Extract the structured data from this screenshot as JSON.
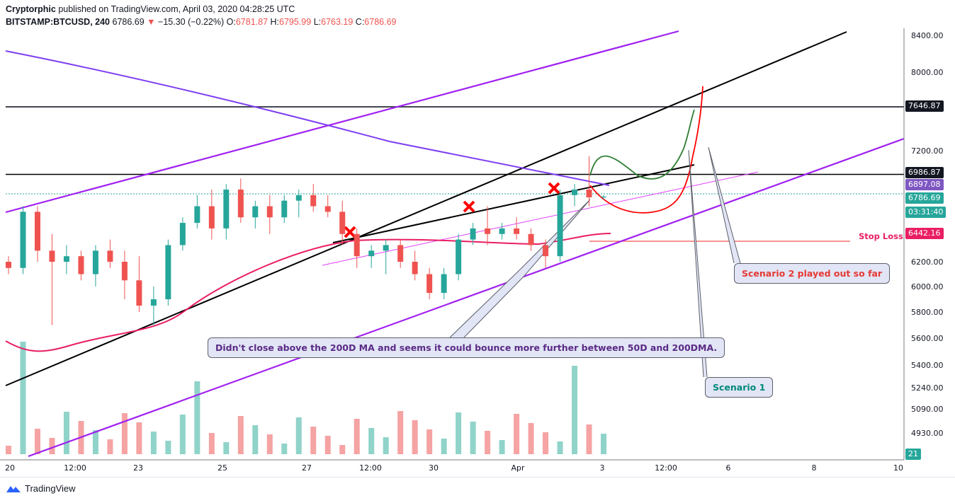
{
  "header": {
    "author": "Cryptorphic",
    "published": " published on TradingView.com, April 03, 2020 04:28:25 UTC",
    "symbol": "BITSTAMP:BTCUSD, 240",
    "last": "6786.69",
    "change_arrow": "▼",
    "change": "−15.30 (−0.22%)",
    "o_label": "O:",
    "o": "6781.87",
    "h_label": "H:",
    "h": "6795.99",
    "l_label": "L:",
    "l": "6763.19",
    "c_label": "C:",
    "c": "6786.69"
  },
  "footer": {
    "brand": "TradingView",
    "logo_icon": "tradingview-logo-icon"
  },
  "price_axis": {
    "ticks": [
      "8400.00",
      "8000.00",
      "7200.00",
      "6200.00",
      "6000.00",
      "5800.00",
      "5600.00",
      "5400.00",
      "5240.00",
      "5090.00",
      "4930.00"
    ],
    "tags": {
      "resistance": "7646.87",
      "level": "6986.87",
      "ma200": "6897.08",
      "last": "6786.69",
      "countdown": "03:31:40",
      "stoploss": "6442.16",
      "volume": "21"
    }
  },
  "time_axis": {
    "ticks": [
      "20",
      "12:00",
      "23",
      "25",
      "27",
      "12:00",
      "30",
      "Apr",
      "3",
      "12:00",
      "6",
      "8",
      "10"
    ]
  },
  "annotations": {
    "bounce": "Didn't close above the 200D  MA and seems it could bounce more further between 50D and 200DMA.",
    "scenario1": "Scenario 1",
    "scenario2": "Scenario 2 played out so far",
    "stoploss": "Stop Loss"
  },
  "colors": {
    "up": "#26a69a",
    "down": "#ef5350",
    "ma200": "#7e3ff2",
    "ma50": "#e91e63",
    "channel": "#a020f0"
  },
  "chart_data": {
    "type": "candlestick",
    "symbol": "BITSTAMP:BTCUSD",
    "interval": "240",
    "last": {
      "open": 6781.87,
      "high": 6795.99,
      "low": 6763.19,
      "close": 6786.69
    },
    "levels": {
      "resistance": 7646.87,
      "horizontal": 6986.87,
      "ma200": 6897.08,
      "stop_loss": 6442.16
    },
    "series": [
      {
        "name": "candles",
        "values": [
          [
            6200,
            6250,
            6100,
            6150
          ],
          [
            6150,
            6700,
            6100,
            6650
          ],
          [
            6650,
            6700,
            6200,
            6300
          ],
          [
            6300,
            6450,
            5700,
            6200
          ],
          [
            6200,
            6350,
            6100,
            6250
          ],
          [
            6250,
            6300,
            6050,
            6100
          ],
          [
            6100,
            6350,
            6000,
            6300
          ],
          [
            6300,
            6400,
            6150,
            6200
          ],
          [
            6200,
            6300,
            5900,
            6050
          ],
          [
            6050,
            6250,
            5800,
            5850
          ],
          [
            5850,
            6000,
            5700,
            5900
          ],
          [
            5900,
            6400,
            5850,
            6350
          ],
          [
            6350,
            6600,
            6300,
            6550
          ],
          [
            6550,
            6800,
            6500,
            6700
          ],
          [
            6700,
            6850,
            6400,
            6500
          ],
          [
            6500,
            6900,
            6400,
            6850
          ],
          [
            6850,
            6950,
            6550,
            6600
          ],
          [
            6600,
            6750,
            6500,
            6700
          ],
          [
            6700,
            6800,
            6450,
            6600
          ],
          [
            6600,
            6800,
            6550,
            6750
          ],
          [
            6750,
            6850,
            6600,
            6800
          ],
          [
            6800,
            6900,
            6650,
            6700
          ],
          [
            6700,
            6800,
            6600,
            6650
          ],
          [
            6650,
            6750,
            6350,
            6450
          ],
          [
            6450,
            6500,
            6150,
            6250
          ],
          [
            6250,
            6350,
            6150,
            6300
          ],
          [
            6300,
            6400,
            6100,
            6350
          ],
          [
            6350,
            6400,
            6150,
            6200
          ],
          [
            6200,
            6300,
            6050,
            6100
          ],
          [
            6100,
            6150,
            5900,
            5950
          ],
          [
            5950,
            6150,
            5900,
            6100
          ],
          [
            6100,
            6450,
            6050,
            6400
          ],
          [
            6400,
            6550,
            6350,
            6500
          ],
          [
            6500,
            6700,
            6350,
            6450
          ],
          [
            6450,
            6550,
            6400,
            6500
          ],
          [
            6500,
            6600,
            6400,
            6450
          ],
          [
            6450,
            6500,
            6300,
            6350
          ],
          [
            6350,
            6400,
            6150,
            6250
          ],
          [
            6250,
            6850,
            6200,
            6800
          ],
          [
            6800,
            6900,
            6700,
            6850
          ],
          [
            6850,
            7150,
            6700,
            6780
          ],
          [
            6780,
            6800,
            6760,
            6787
          ]
        ]
      },
      {
        "name": "200D MA",
        "values": [
          8200,
          7500,
          6897
        ]
      },
      {
        "name": "50D MA",
        "values": [
          5550,
          5700,
          6400,
          6450
        ]
      }
    ]
  }
}
